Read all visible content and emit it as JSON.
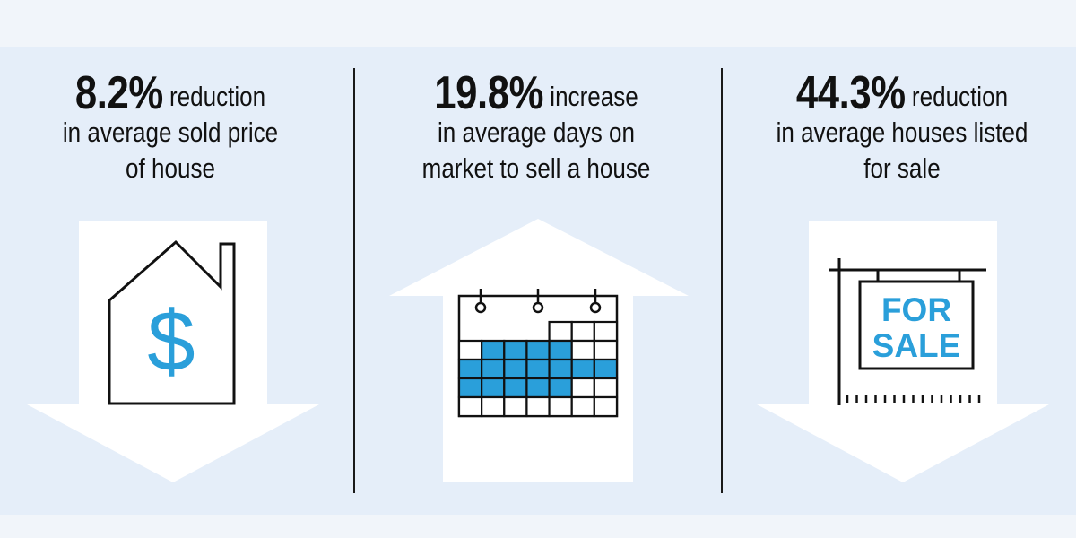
{
  "stats": [
    {
      "value": "8.2%",
      "lead": "reduction",
      "line2": "in average sold price",
      "line3": "of house",
      "direction": "down",
      "icon": "house-dollar-icon"
    },
    {
      "value": "19.8%",
      "lead": "increase",
      "line2": "in average days on",
      "line3": "market to sell a house",
      "direction": "up",
      "icon": "calendar-icon"
    },
    {
      "value": "44.3%",
      "lead": "reduction",
      "line2": "in average houses listed",
      "line3": "for sale",
      "direction": "down",
      "icon": "for-sale-sign-icon"
    }
  ],
  "icon_glyphs": {
    "dollar": "$"
  },
  "sign": {
    "line1": "FOR",
    "line2": "SALE"
  },
  "colors": {
    "background": "#f1f5fa",
    "panel": "#e5eef9",
    "arrow": "#ffffff",
    "accent": "#2a9fda",
    "text": "#111111"
  }
}
